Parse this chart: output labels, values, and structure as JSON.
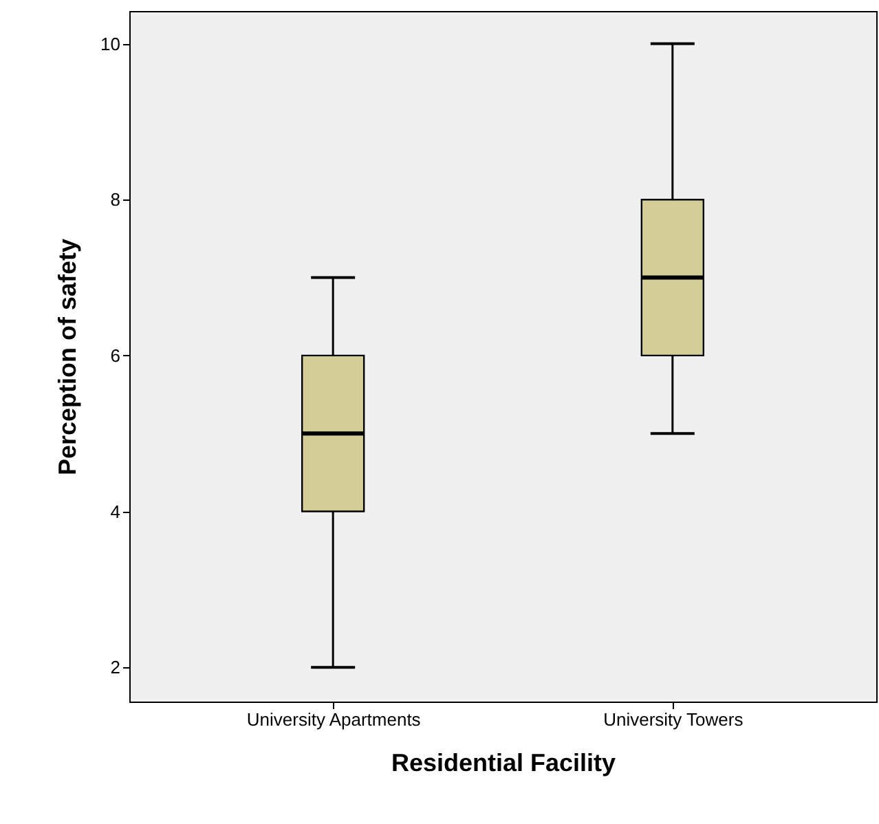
{
  "chart_data": {
    "type": "box",
    "xlabel": "Residential Facility",
    "ylabel": "Perception of safety",
    "categories": [
      "University Apartments",
      "University Towers"
    ],
    "boxes": [
      {
        "low": 2,
        "q1": 4,
        "median": 5,
        "q3": 6,
        "high": 7
      },
      {
        "low": 5,
        "q1": 6,
        "median": 7,
        "q3": 8,
        "high": 10
      }
    ],
    "color": "#d3ce97",
    "ylim": [
      1.56,
      10.42
    ],
    "yticks": [
      2,
      4,
      6,
      8,
      10
    ],
    "grid": false
  }
}
